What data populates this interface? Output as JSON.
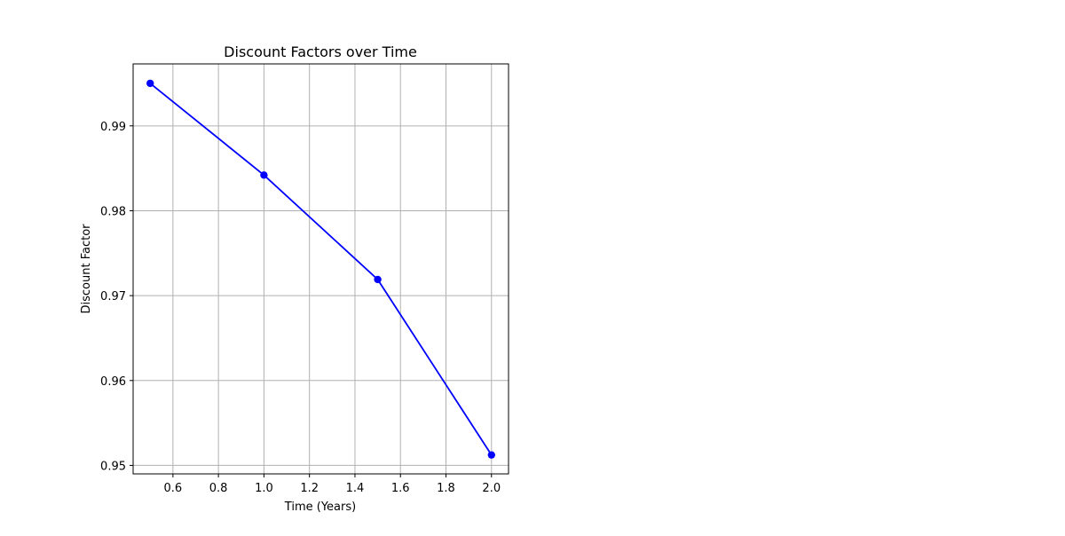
{
  "chart_data": {
    "type": "line",
    "title": "Discount Factors over Time",
    "xlabel": "Time (Years)",
    "ylabel": "Discount Factor",
    "x": [
      0.5,
      1.0,
      1.5,
      2.0
    ],
    "series": [
      {
        "values": [
          0.99501,
          0.9842,
          0.9719,
          0.95123
        ],
        "color": "#0000ff",
        "marker": "circle"
      }
    ],
    "xlim": [
      0.425,
      2.075
    ],
    "ylim": [
      0.949,
      0.9973
    ],
    "xticks": [
      "0.6",
      "0.8",
      "1.0",
      "1.2",
      "1.4",
      "1.6",
      "1.8",
      "2.0"
    ],
    "yticks": [
      "0.95",
      "0.96",
      "0.97",
      "0.98",
      "0.99"
    ],
    "grid": true,
    "legend": "none"
  }
}
